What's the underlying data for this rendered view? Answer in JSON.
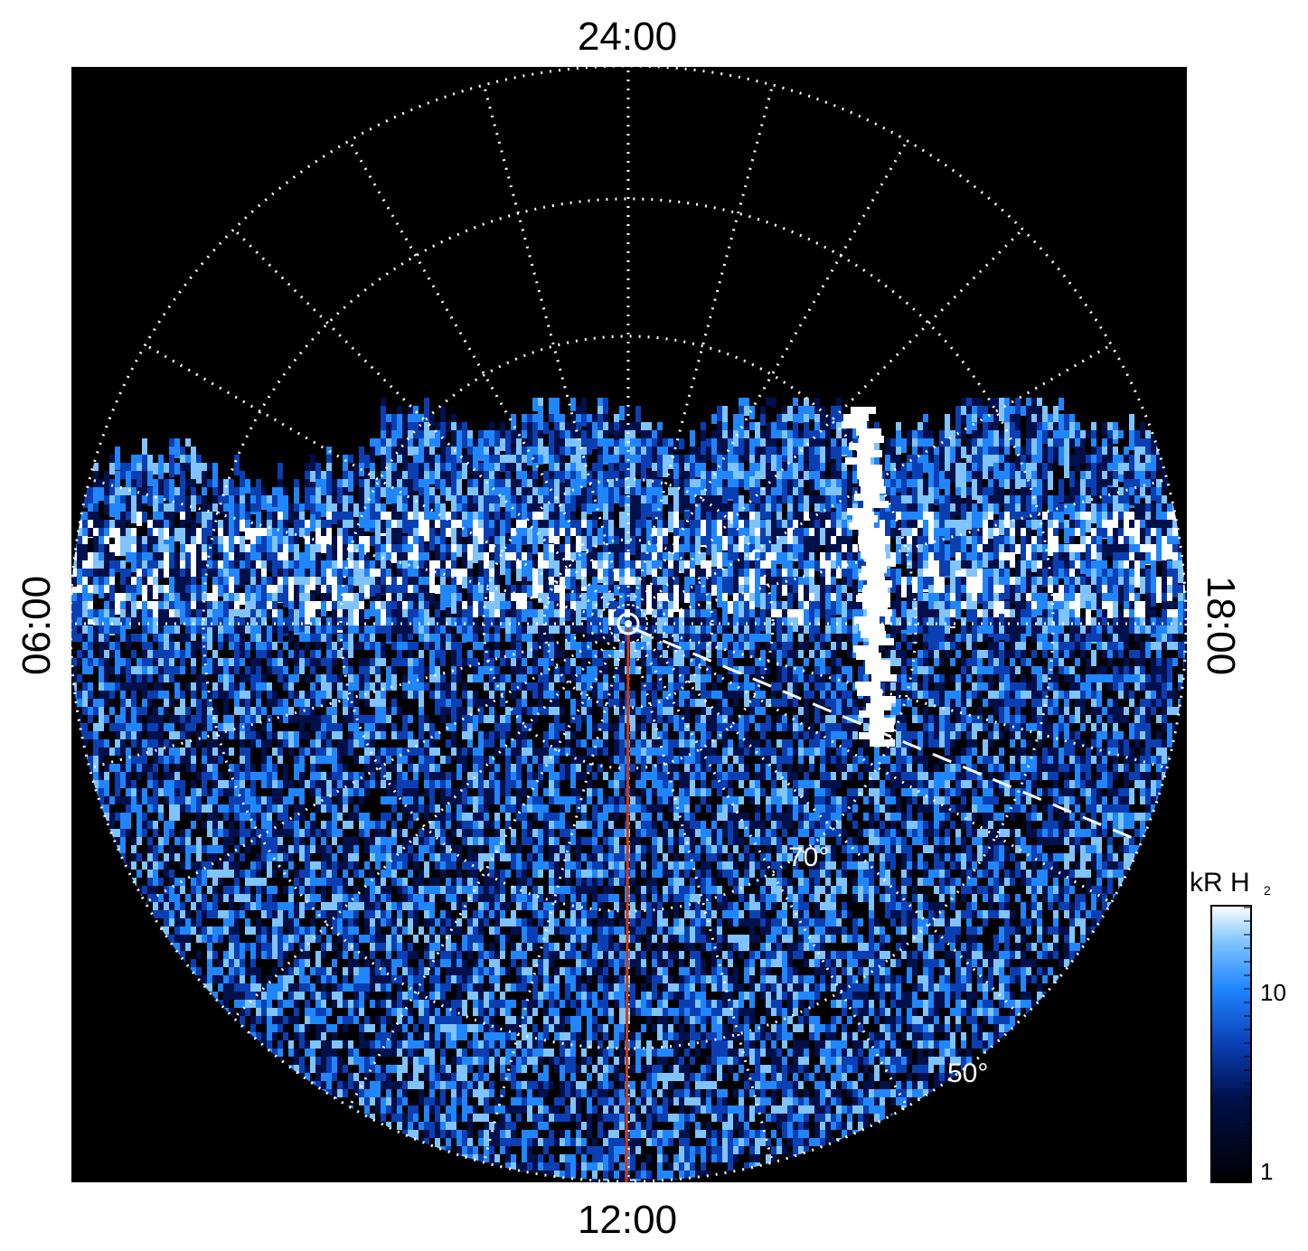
{
  "projection": {
    "pole_label": "polar projection",
    "local_time_labels": {
      "top": "24:00",
      "bottom": "12:00",
      "left": "06:00",
      "right": "18:00"
    },
    "latitude_labels": [
      "70°",
      "50°"
    ]
  },
  "colorbar": {
    "title": "kR H",
    "title_subscript": "2",
    "tick_labels": [
      "1",
      "10"
    ],
    "scale": "log",
    "colors": [
      "#000000",
      "#00104a",
      "#0a3fb4",
      "#1f86ff",
      "#7fc4ff",
      "#ffffff"
    ]
  },
  "colors": {
    "background": "#000000",
    "grid": "#ffffff",
    "meridian_line": "#d23a12"
  }
}
